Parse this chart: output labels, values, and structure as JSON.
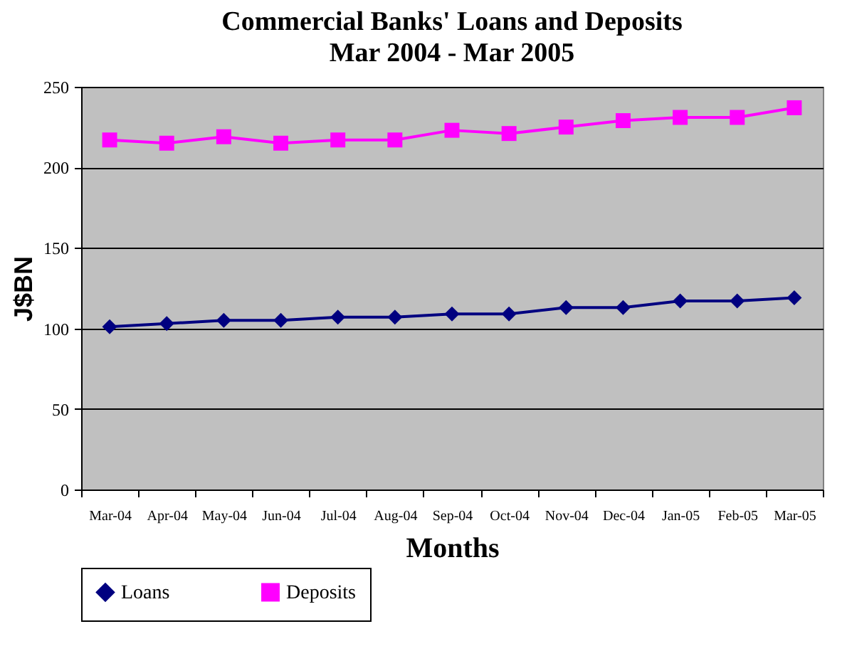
{
  "chart_data": {
    "type": "line",
    "title": "Commercial Banks' Loans and Deposits",
    "subtitle": "Mar 2004 - Mar 2005",
    "xlabel": "Months",
    "ylabel": "J$BN",
    "categories": [
      "Mar-04",
      "Apr-04",
      "May-04",
      "Jun-04",
      "Jul-04",
      "Aug-04",
      "Sep-04",
      "Oct-04",
      "Nov-04",
      "Dec-04",
      "Jan-05",
      "Feb-05",
      "Mar-05"
    ],
    "series": [
      {
        "name": "Loans",
        "color": "#000080",
        "marker": "diamond",
        "values": [
          101,
          103,
          105,
          105,
          107,
          107,
          109,
          109,
          113,
          113,
          117,
          117,
          119
        ]
      },
      {
        "name": "Deposits",
        "color": "#ff00ff",
        "marker": "square",
        "values": [
          217,
          215,
          219,
          215,
          217,
          217,
          223,
          221,
          225,
          229,
          231,
          231,
          237
        ]
      }
    ],
    "ylim": [
      0,
      250
    ],
    "yticks": [
      0,
      50,
      100,
      150,
      200,
      250
    ],
    "grid": "y",
    "legend": "bottom"
  }
}
